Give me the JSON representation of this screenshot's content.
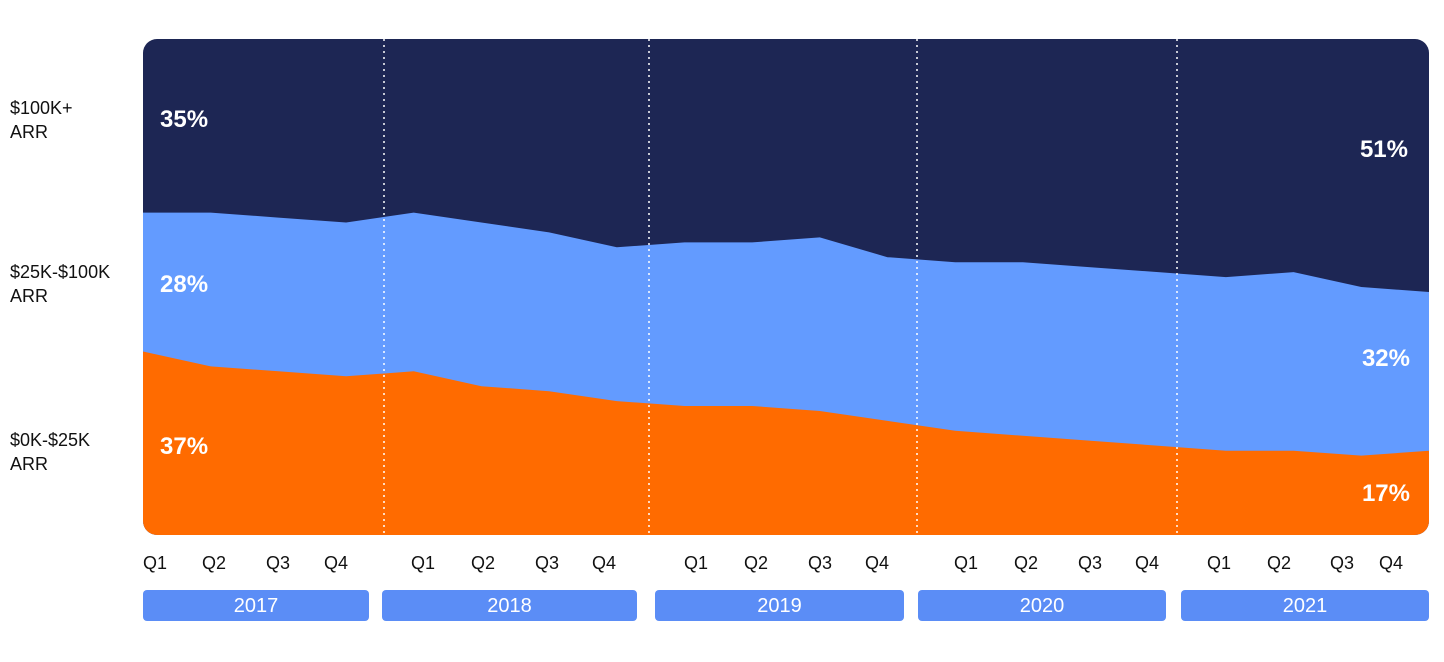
{
  "chart_data": {
    "type": "area",
    "stacked": true,
    "normalized_percent": true,
    "x": [
      "2017 Q1",
      "2017 Q2",
      "2017 Q3",
      "2017 Q4",
      "2018 Q1",
      "2018 Q2",
      "2018 Q3",
      "2018 Q4",
      "2019 Q1",
      "2019 Q2",
      "2019 Q3",
      "2019 Q4",
      "2020 Q1",
      "2020 Q2",
      "2020 Q3",
      "2020 Q4",
      "2021 Q1",
      "2021 Q2",
      "2021 Q3",
      "2021 Q4"
    ],
    "quarter_labels": [
      "Q1",
      "Q2",
      "Q3",
      "Q4"
    ],
    "years": [
      "2017",
      "2018",
      "2019",
      "2020",
      "2021"
    ],
    "series": [
      {
        "name": "$0K-$25K ARR",
        "label_lines": [
          "$0K-$25K",
          "ARR"
        ],
        "color": "#FF6B00",
        "values": [
          37,
          34,
          33,
          32,
          33,
          30,
          29,
          27,
          26,
          26,
          25,
          23,
          21,
          20,
          19,
          18,
          17,
          17,
          16,
          17
        ]
      },
      {
        "name": "$25K-$100K ARR",
        "label_lines": [
          "$25K-$100K",
          "ARR"
        ],
        "color": "#639BFF",
        "values": [
          28,
          31,
          31,
          31,
          32,
          33,
          32,
          31,
          33,
          33,
          35,
          33,
          34,
          35,
          35,
          35,
          35,
          36,
          34,
          32
        ]
      },
      {
        "name": "$100K+ ARR",
        "label_lines": [
          "$100K+",
          "ARR"
        ],
        "color": "#1D2654",
        "values": [
          35,
          35,
          36,
          37,
          35,
          37,
          39,
          42,
          41,
          41,
          40,
          44,
          45,
          45,
          46,
          47,
          48,
          47,
          50,
          51
        ]
      }
    ],
    "annotations": {
      "start": {
        "low": "37%",
        "mid": "28%",
        "high": "35%"
      },
      "end": {
        "low": "17%",
        "mid": "32%",
        "high": "51%"
      }
    },
    "ylim": [
      0,
      100
    ],
    "colors": {
      "year_pill": "#5B8DF6",
      "year_text": "#FFFFFF",
      "tick_text": "#111111",
      "divider": "#FFFFFF"
    }
  }
}
